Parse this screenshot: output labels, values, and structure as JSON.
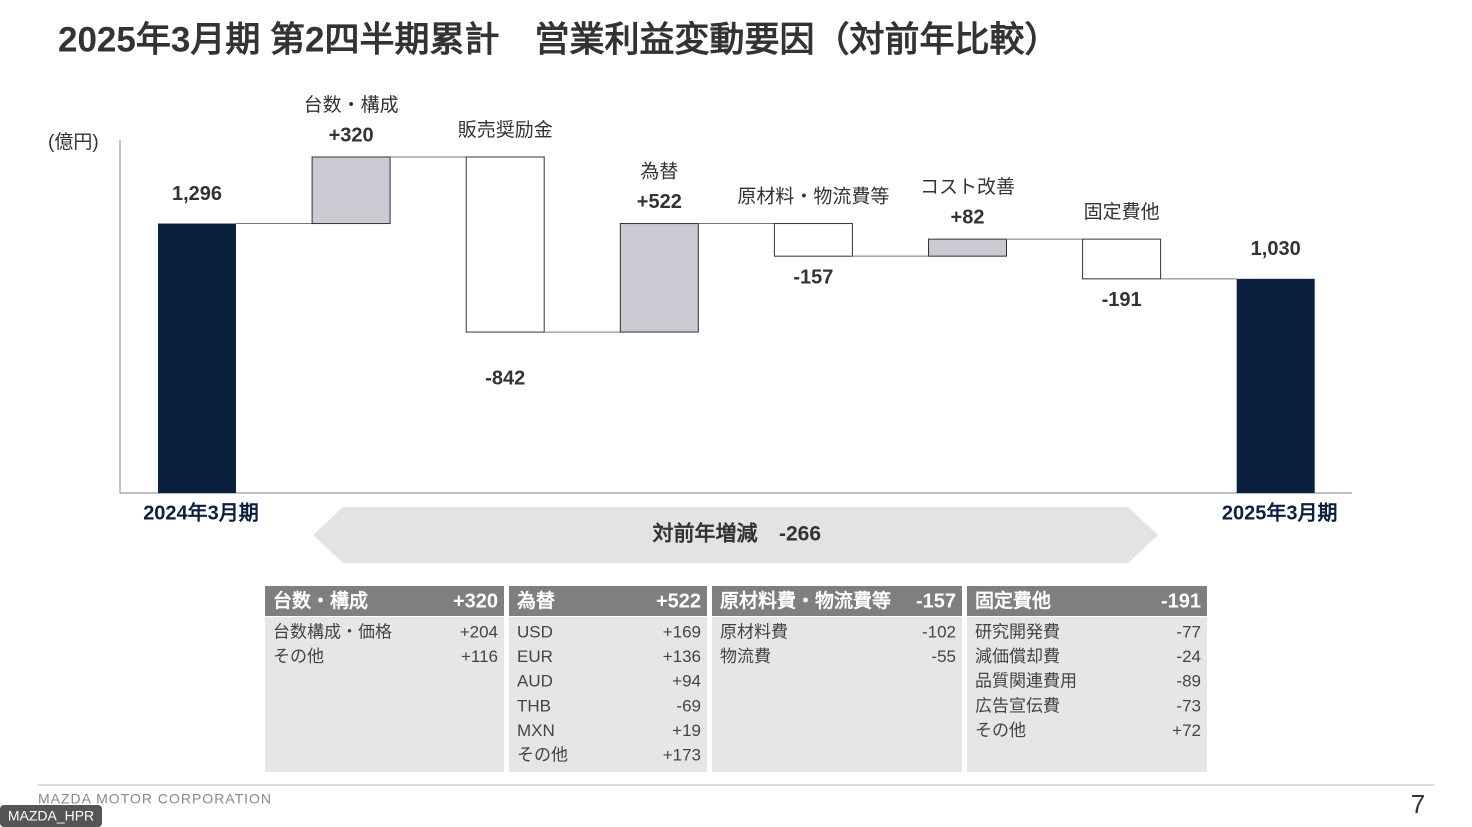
{
  "chart_data": {
    "type": "waterfall",
    "title": "2025年3月期 第2四半期累計　営業利益変動要因（対前年比較）",
    "unit_label": "(億円)",
    "categories": [
      "2024年3月期",
      "台数・構成",
      "販売奨励金",
      "為替",
      "原材料・物流費等",
      "コスト改善",
      "固定費他",
      "2025年3月期"
    ],
    "values": [
      1296,
      320,
      -842,
      522,
      -157,
      82,
      -191,
      1030
    ],
    "value_labels": [
      "1,296",
      "+320",
      "-842",
      "+522",
      "-157",
      "+82",
      "-191",
      "1,030"
    ],
    "totals": [
      true,
      false,
      false,
      false,
      false,
      false,
      false,
      true
    ],
    "colors": {
      "total": "#0b1f3f",
      "increase": "#c9cad2",
      "decrease": "#ffffff"
    },
    "change_label": "対前年増減",
    "change_value": "-266"
  },
  "tables": [
    {
      "name": "台数・構成",
      "value": "+320",
      "rows": [
        [
          "台数構成・価格",
          "+204"
        ],
        [
          "その他",
          "+116"
        ]
      ]
    },
    {
      "name": "為替",
      "value": "+522",
      "rows": [
        [
          "USD",
          "+169"
        ],
        [
          "EUR",
          "+136"
        ],
        [
          "AUD",
          "+94"
        ],
        [
          "THB",
          "-69"
        ],
        [
          "MXN",
          "+19"
        ],
        [
          "その他",
          "+173"
        ]
      ]
    },
    {
      "name": "原材料費・物流費等",
      "value": "-157",
      "rows": [
        [
          "原材料費",
          "-102"
        ],
        [
          "物流費",
          "-55"
        ]
      ]
    },
    {
      "name": "固定費他",
      "value": "-191",
      "rows": [
        [
          "研究開発費",
          "-77"
        ],
        [
          "減価償却費",
          "-24"
        ],
        [
          "品質関連費用",
          "-89"
        ],
        [
          "広告宣伝費",
          "-73"
        ],
        [
          "その他",
          "+72"
        ]
      ]
    }
  ],
  "footer": {
    "company": "MAZDA MOTOR CORPORATION",
    "page": "7",
    "badge": "MAZDA_HPR"
  }
}
